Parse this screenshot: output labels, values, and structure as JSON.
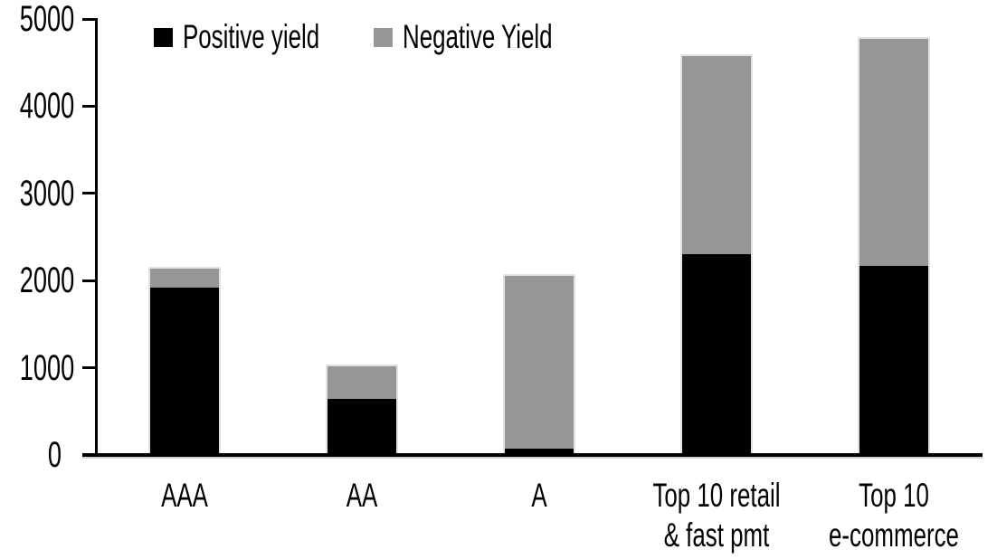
{
  "chart_data": {
    "type": "bar",
    "stacked": true,
    "title": "",
    "xlabel": "",
    "ylabel": "",
    "grid": false,
    "legend_position": "top-inside",
    "ylim": [
      0,
      5000
    ],
    "yticks": [
      0,
      1000,
      2000,
      3000,
      4000,
      5000
    ],
    "categories": [
      "AAA",
      "AA",
      "A",
      "Top 10 retail\n& fast pmt",
      "Top 10\ne-commerce"
    ],
    "series": [
      {
        "name": "Positive yield",
        "color": "#000000",
        "values": [
          1900,
          620,
          50,
          2280,
          2150
        ]
      },
      {
        "name": "Negative Yield",
        "color": "#969696",
        "values": [
          220,
          380,
          1980,
          2270,
          2600
        ]
      }
    ],
    "totals": [
      2120,
      1000,
      2030,
      4550,
      4750
    ]
  },
  "colors": {
    "background": "#ffffff",
    "axis": "#000000",
    "positive_series": "#000000",
    "negative_series": "#969696",
    "bar_border": "#e2e2e2"
  }
}
